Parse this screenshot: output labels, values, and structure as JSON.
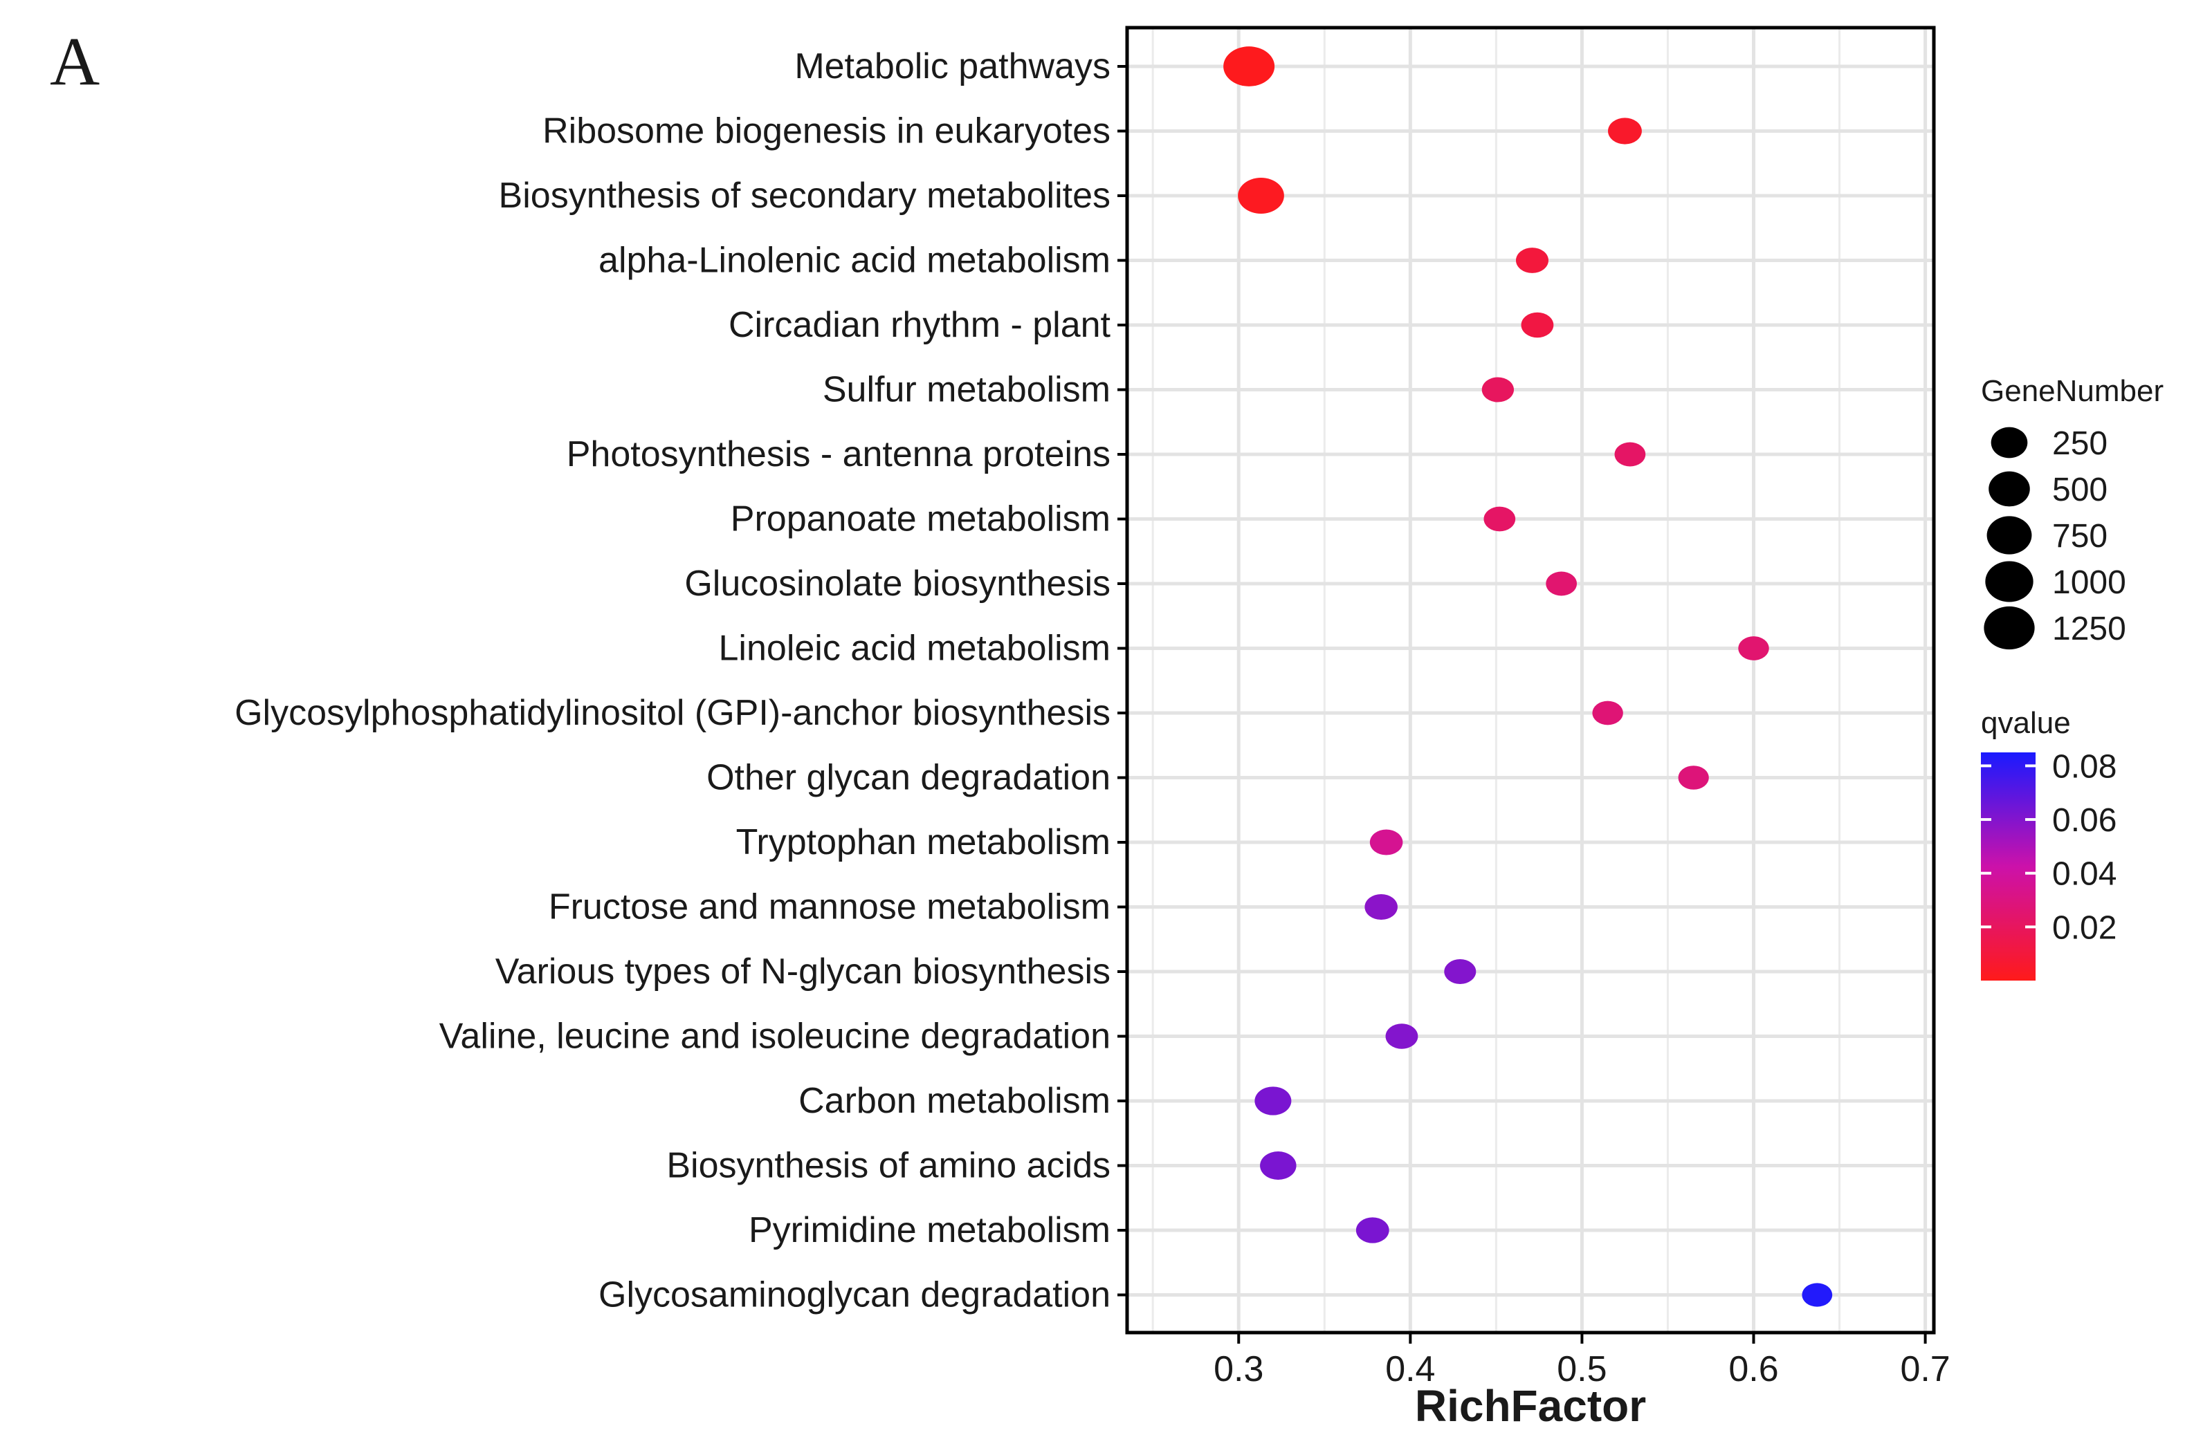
{
  "panel_label": "A",
  "chart_data": {
    "type": "scatter",
    "title": "",
    "xlabel": "RichFactor",
    "ylabel": "",
    "xlim": [
      0.235,
      0.705
    ],
    "x_ticks": [
      0.3,
      0.4,
      0.5,
      0.6,
      0.7
    ],
    "x_tick_labels": [
      "0.3",
      "0.4",
      "0.5",
      "0.6",
      "0.7"
    ],
    "grid": true,
    "legend_position": "right",
    "size_legend": {
      "title": "GeneNumber",
      "values": [
        250,
        500,
        750,
        1000,
        1250
      ],
      "labels": [
        "250",
        "500",
        "750",
        "1000",
        "1250"
      ]
    },
    "color_legend": {
      "title": "qvalue",
      "range": [
        0.0,
        0.085
      ],
      "ticks": [
        0.08,
        0.06,
        0.04,
        0.02
      ],
      "tick_labels": [
        "0.08",
        "0.06",
        "0.04",
        "0.02"
      ],
      "low_color": "#ff1a1a",
      "high_color": "#1a1aff"
    },
    "points": [
      {
        "term": "Metabolic pathways",
        "rich_factor": 0.306,
        "gene_number": 1300,
        "qvalue": 0.001
      },
      {
        "term": "Ribosome biogenesis in eukaryotes",
        "rich_factor": 0.525,
        "gene_number": 150,
        "qvalue": 0.005
      },
      {
        "term": "Biosynthesis of secondary metabolites",
        "rich_factor": 0.313,
        "gene_number": 850,
        "qvalue": 0.002
      },
      {
        "term": "alpha-Linolenic acid metabolism",
        "rich_factor": 0.471,
        "gene_number": 110,
        "qvalue": 0.01
      },
      {
        "term": "Circadian rhythm - plant",
        "rich_factor": 0.474,
        "gene_number": 105,
        "qvalue": 0.012
      },
      {
        "term": "Sulfur metabolism",
        "rich_factor": 0.451,
        "gene_number": 95,
        "qvalue": 0.02
      },
      {
        "term": "Photosynthesis - antenna proteins",
        "rich_factor": 0.528,
        "gene_number": 70,
        "qvalue": 0.022
      },
      {
        "term": "Propanoate metabolism",
        "rich_factor": 0.452,
        "gene_number": 85,
        "qvalue": 0.022
      },
      {
        "term": "Glucosinolate biosynthesis",
        "rich_factor": 0.488,
        "gene_number": 70,
        "qvalue": 0.025
      },
      {
        "term": "Linoleic acid metabolism",
        "rich_factor": 0.6,
        "gene_number": 65,
        "qvalue": 0.025
      },
      {
        "term": "Glycosylphosphatidylinositol (GPI)-anchor biosynthesis",
        "rich_factor": 0.515,
        "gene_number": 65,
        "qvalue": 0.027
      },
      {
        "term": "Other glycan degradation",
        "rich_factor": 0.565,
        "gene_number": 62,
        "qvalue": 0.028
      },
      {
        "term": "Tryptophan metabolism",
        "rich_factor": 0.386,
        "gene_number": 120,
        "qvalue": 0.035
      },
      {
        "term": "Fructose and mannose metabolism",
        "rich_factor": 0.383,
        "gene_number": 120,
        "qvalue": 0.058
      },
      {
        "term": "Various types of N-glycan biosynthesis",
        "rich_factor": 0.429,
        "gene_number": 90,
        "qvalue": 0.06
      },
      {
        "term": "Valine, leucine and isoleucine degradation",
        "rich_factor": 0.395,
        "gene_number": 105,
        "qvalue": 0.06
      },
      {
        "term": "Carbon metabolism",
        "rich_factor": 0.32,
        "gene_number": 260,
        "qvalue": 0.062
      },
      {
        "term": "Biosynthesis of amino acids",
        "rich_factor": 0.323,
        "gene_number": 245,
        "qvalue": 0.062
      },
      {
        "term": "Pyrimidine metabolism",
        "rich_factor": 0.378,
        "gene_number": 125,
        "qvalue": 0.062
      },
      {
        "term": "Glycosaminoglycan degradation",
        "rich_factor": 0.637,
        "gene_number": 55,
        "qvalue": 0.083
      }
    ]
  }
}
